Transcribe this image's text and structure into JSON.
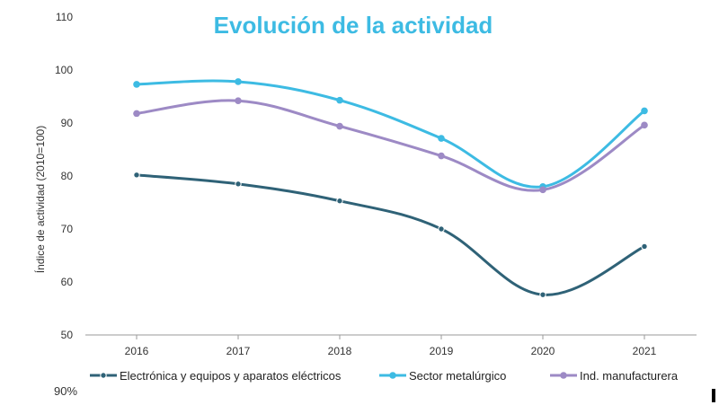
{
  "chart_data": {
    "type": "line",
    "title": "Evolución de la actividad",
    "xlabel": "",
    "ylabel": "Índice de actividad (2010=100)",
    "categories": [
      "2016",
      "2017",
      "2018",
      "2019",
      "2020",
      "2021"
    ],
    "ylim": [
      50,
      110
    ],
    "yticks": [
      50,
      60,
      70,
      80,
      90,
      100,
      110
    ],
    "grid": false,
    "legend_position": "bottom",
    "series": [
      {
        "name": "Electrónica y equipos y aparatos eléctricos",
        "values": [
          80.2,
          78.5,
          75.3,
          70.0,
          57.6,
          66.7
        ],
        "color": "#2f6277"
      },
      {
        "name": "Sector metalúrgico",
        "values": [
          97.3,
          97.8,
          94.3,
          87.1,
          78.0,
          92.3
        ],
        "color": "#3dbbe3"
      },
      {
        "name": "Ind. manufacturera",
        "values": [
          91.8,
          94.2,
          89.4,
          83.8,
          77.4,
          89.6
        ],
        "color": "#9d8ac5"
      }
    ],
    "title_color": "#3dbbe3"
  },
  "footer": {
    "note": "90%"
  }
}
